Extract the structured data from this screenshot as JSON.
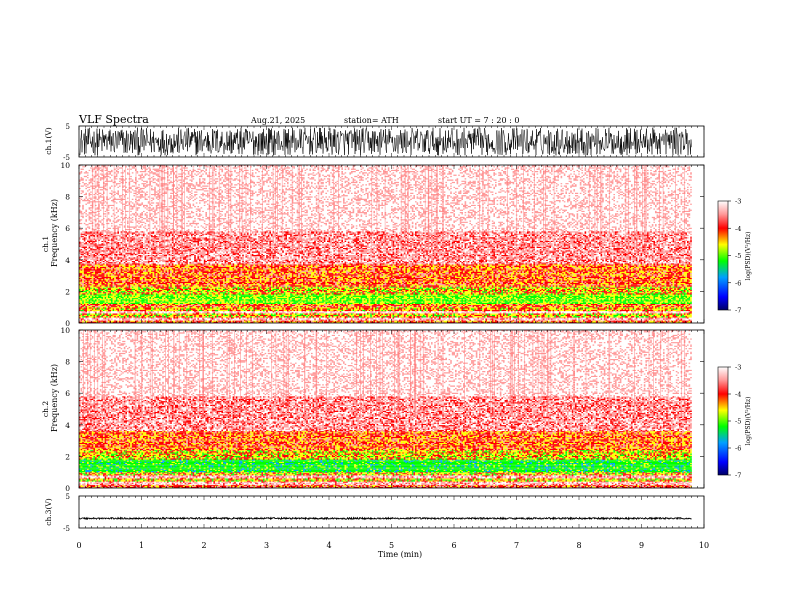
{
  "header": {
    "title": "VLF  Spectra",
    "date": "Aug.21, 2025",
    "station": "station= ATH",
    "start_ut": "start  UT  =    7  : 20 : 0"
  },
  "colors": {
    "background": "#ffffff",
    "axis": "#000000",
    "waveform": "#000000",
    "colormap": [
      "#000066",
      "#0000ff",
      "#00a0ff",
      "#00ff00",
      "#ffff00",
      "#ff0000",
      "#ff9a9a",
      "#ffffff"
    ]
  },
  "chart_data": [
    {
      "type": "line",
      "name": "ch1-waveform",
      "ylabel": "ch.1(V)",
      "ylim": [
        -5,
        5
      ],
      "yticks": [
        "5",
        "-5"
      ],
      "xlim": [
        0,
        10
      ],
      "signal_end_min": 9.8,
      "amplitude_v": 4.5,
      "description_series": "broadband noise"
    },
    {
      "type": "heatmap",
      "name": "ch1-spectrogram",
      "ylabel_line1": "ch.1",
      "ylabel_line2": "Frequency  (kHz)",
      "ylim": [
        0,
        10
      ],
      "yticks": [
        "0",
        "2",
        "4",
        "6",
        "8",
        "10"
      ],
      "xlim": [
        0,
        10
      ],
      "signal_end_min": 9.8,
      "bands_khz_logpsd": [
        {
          "f0": 0.0,
          "f1": 0.15,
          "level": -4.0
        },
        {
          "f0": 0.15,
          "f1": 0.35,
          "level": -3.4
        },
        {
          "f0": 0.35,
          "f1": 0.6,
          "level": -4.3
        },
        {
          "f0": 0.6,
          "f1": 0.75,
          "level": -3.3
        },
        {
          "f0": 0.75,
          "f1": 1.0,
          "level": -4.2
        },
        {
          "f0": 1.0,
          "f1": 1.2,
          "level": -4.0
        },
        {
          "f0": 1.2,
          "f1": 1.8,
          "level": -4.6
        },
        {
          "f0": 1.8,
          "f1": 2.3,
          "level": -4.3
        },
        {
          "f0": 2.3,
          "f1": 3.7,
          "level": -4.0
        },
        {
          "f0": 3.7,
          "f1": 5.8,
          "level": -3.5
        },
        {
          "f0": 5.8,
          "f1": 10.0,
          "level": -3.2
        }
      ],
      "colorbar": {
        "label": "log(PSD)(V²/Hz)",
        "range": [
          -7,
          -3
        ],
        "ticks": [
          "-3",
          "-4",
          "-5",
          "-6",
          "-7"
        ]
      }
    },
    {
      "type": "heatmap",
      "name": "ch2-spectrogram",
      "ylabel_line1": "ch.2",
      "ylabel_line2": "Frequency  (kHz)",
      "ylim": [
        0,
        10
      ],
      "yticks": [
        "0",
        "2",
        "4",
        "6",
        "8",
        "10"
      ],
      "xlim": [
        0,
        10
      ],
      "signal_end_min": 9.8,
      "bands_khz_logpsd": [
        {
          "f0": 0.0,
          "f1": 0.2,
          "level": -3.9
        },
        {
          "f0": 0.2,
          "f1": 0.4,
          "level": -3.4
        },
        {
          "f0": 0.4,
          "f1": 0.6,
          "level": -4.3
        },
        {
          "f0": 0.6,
          "f1": 0.8,
          "level": -3.4
        },
        {
          "f0": 0.8,
          "f1": 1.0,
          "level": -4.3
        },
        {
          "f0": 1.0,
          "f1": 1.8,
          "level": -4.9
        },
        {
          "f0": 1.8,
          "f1": 2.4,
          "level": -4.3
        },
        {
          "f0": 2.4,
          "f1": 3.6,
          "level": -4.0
        },
        {
          "f0": 3.6,
          "f1": 5.8,
          "level": -3.5
        },
        {
          "f0": 5.8,
          "f1": 10.0,
          "level": -3.2
        }
      ],
      "colorbar": {
        "label": "log(PSD)(V²/Hz)",
        "range": [
          -7,
          -3
        ],
        "ticks": [
          "-3",
          "-4",
          "-5",
          "-6",
          "-7"
        ]
      }
    },
    {
      "type": "line",
      "name": "ch3-waveform",
      "ylabel": "ch.3(V)",
      "ylim": [
        -5,
        5
      ],
      "yticks": [
        "5",
        "-5"
      ],
      "xlim": [
        0,
        10
      ],
      "signal_end_min": 9.8,
      "offset_v": -2.0,
      "amplitude_v": 0.25,
      "xlabel": "Time  (min)",
      "xticks": [
        "0",
        "1",
        "2",
        "3",
        "4",
        "5",
        "6",
        "7",
        "8",
        "9",
        "10"
      ]
    }
  ]
}
